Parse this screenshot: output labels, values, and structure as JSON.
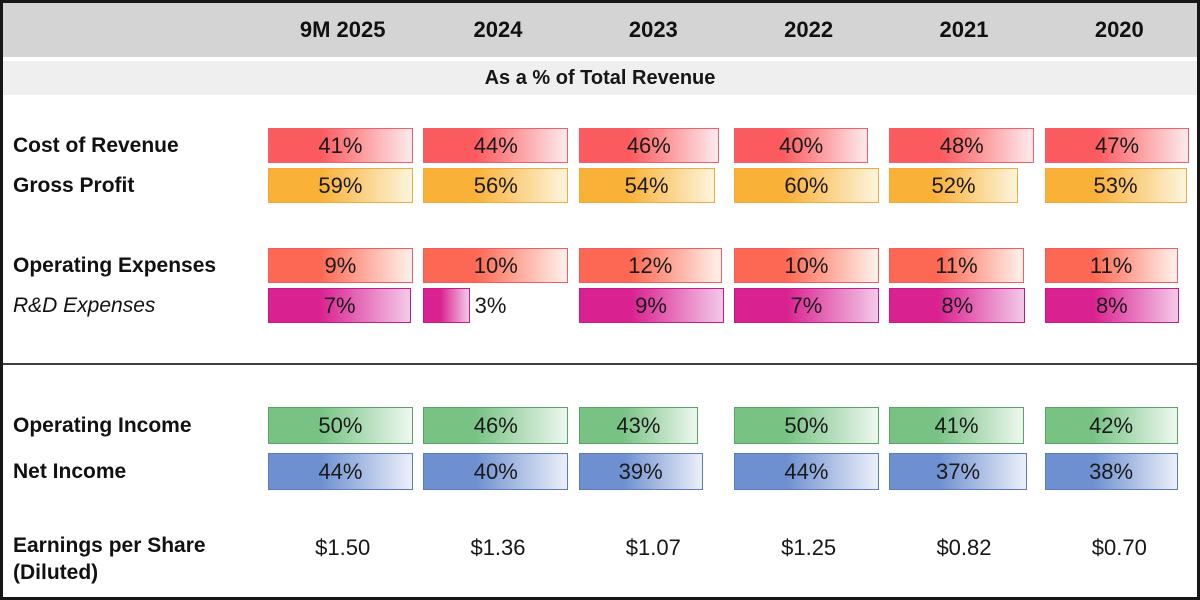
{
  "subtitle": "As a % of Total Revenue",
  "header": {
    "years": [
      "9M 2025",
      "2024",
      "2023",
      "2022",
      "2021",
      "2020"
    ]
  },
  "colors": {
    "frame_border": "#161616",
    "header_band_bg": "#d4d4d4",
    "subtitle_band_bg": "#efefef",
    "divider": "#3f3f3f",
    "bar_text": "#1a1a1a"
  },
  "palettes": {
    "red": {
      "start": "#fb5a5e",
      "end": "#fce6e8",
      "border": "#f0606f"
    },
    "salmon": {
      "start": "#fc6853",
      "end": "#feeee7",
      "border": "#f45b63"
    },
    "amber": {
      "start": "#f9b138",
      "end": "#fdf3d8",
      "border": "#f3a93d"
    },
    "magenta": {
      "start": "#da2190",
      "end": "#f2c4e6",
      "border": "#c01e85"
    },
    "green": {
      "start": "#78c284",
      "end": "#eaf6ec",
      "border": "#5ba26a"
    },
    "blue": {
      "start": "#6e90d1",
      "end": "#e8edf8",
      "border": "#5b7dc0"
    }
  },
  "table": {
    "rows": [
      {
        "id": "cost-of-revenue",
        "label": "Cost of Revenue",
        "label_style": "bold",
        "palette": "red",
        "section": "upper",
        "values": [
          "41%",
          "44%",
          "46%",
          "40%",
          "48%",
          "47%"
        ],
        "width_pct": [
          97,
          97,
          94,
          90,
          97,
          97
        ],
        "gap_before": 0
      },
      {
        "id": "gross-profit",
        "label": "Gross Profit",
        "label_style": "bold",
        "palette": "amber",
        "section": "upper",
        "values": [
          "59%",
          "56%",
          "54%",
          "60%",
          "52%",
          "53%"
        ],
        "width_pct": [
          97,
          97,
          91,
          97,
          86,
          95
        ],
        "gap_before": 0
      },
      {
        "id": "operating-expenses",
        "label": "Operating Expenses",
        "label_style": "bold",
        "palette": "salmon",
        "section": "upper",
        "values": [
          "9%",
          "10%",
          "12%",
          "10%",
          "11%",
          "11%"
        ],
        "width_pct": [
          97,
          97,
          96,
          97,
          90,
          89
        ],
        "gap_before": 45
      },
      {
        "id": "rd-expenses",
        "label": "R&D Expenses",
        "label_style": "italic",
        "palette": "magenta",
        "section": "upper",
        "values": [
          "7%",
          "3%",
          "9%",
          "7%",
          "8%",
          "8%"
        ],
        "width_pct": [
          96,
          31,
          97,
          97,
          91,
          90
        ],
        "gap_before": 0
      },
      {
        "id": "operating-income",
        "label": "Operating Income",
        "label_style": "bold",
        "palette": "green",
        "section": "lower",
        "values": [
          "50%",
          "46%",
          "43%",
          "50%",
          "41%",
          "42%"
        ],
        "width_pct": [
          97,
          97,
          80,
          97,
          90,
          89
        ],
        "gap_before": 0
      },
      {
        "id": "net-income",
        "label": "Net Income",
        "label_style": "bold",
        "palette": "blue",
        "section": "lower",
        "values": [
          "44%",
          "40%",
          "39%",
          "44%",
          "37%",
          "38%"
        ],
        "width_pct": [
          97,
          97,
          83,
          97,
          92,
          89
        ],
        "gap_before": 0
      }
    ],
    "eps_row": {
      "id": "earnings-per-share",
      "label": "Earnings per Share (Diluted)",
      "values": [
        "$1.50",
        "$1.36",
        "$1.07",
        "$1.25",
        "$0.82",
        "$0.70"
      ]
    }
  },
  "chart_data": {
    "type": "bar",
    "title": "As a % of Total Revenue",
    "categories": [
      "9M 2025",
      "2024",
      "2023",
      "2022",
      "2021",
      "2020"
    ],
    "series": [
      {
        "name": "Cost of Revenue",
        "unit": "%",
        "values": [
          41,
          44,
          46,
          40,
          48,
          47
        ]
      },
      {
        "name": "Gross Profit",
        "unit": "%",
        "values": [
          59,
          56,
          54,
          60,
          52,
          53
        ]
      },
      {
        "name": "Operating Expenses",
        "unit": "%",
        "values": [
          9,
          10,
          12,
          10,
          11,
          11
        ]
      },
      {
        "name": "R&D Expenses",
        "unit": "%",
        "values": [
          7,
          3,
          9,
          7,
          8,
          8
        ]
      },
      {
        "name": "Operating Income",
        "unit": "%",
        "values": [
          50,
          46,
          43,
          50,
          41,
          42
        ]
      },
      {
        "name": "Net Income",
        "unit": "%",
        "values": [
          44,
          40,
          39,
          44,
          37,
          38
        ]
      },
      {
        "name": "Earnings per Share (Diluted)",
        "unit": "USD",
        "values": [
          1.5,
          1.36,
          1.07,
          1.25,
          0.82,
          0.7
        ]
      }
    ],
    "layout": {
      "value_labels": "inside bars",
      "orientation": "horizontal",
      "grid": false,
      "legend": "none"
    }
  }
}
